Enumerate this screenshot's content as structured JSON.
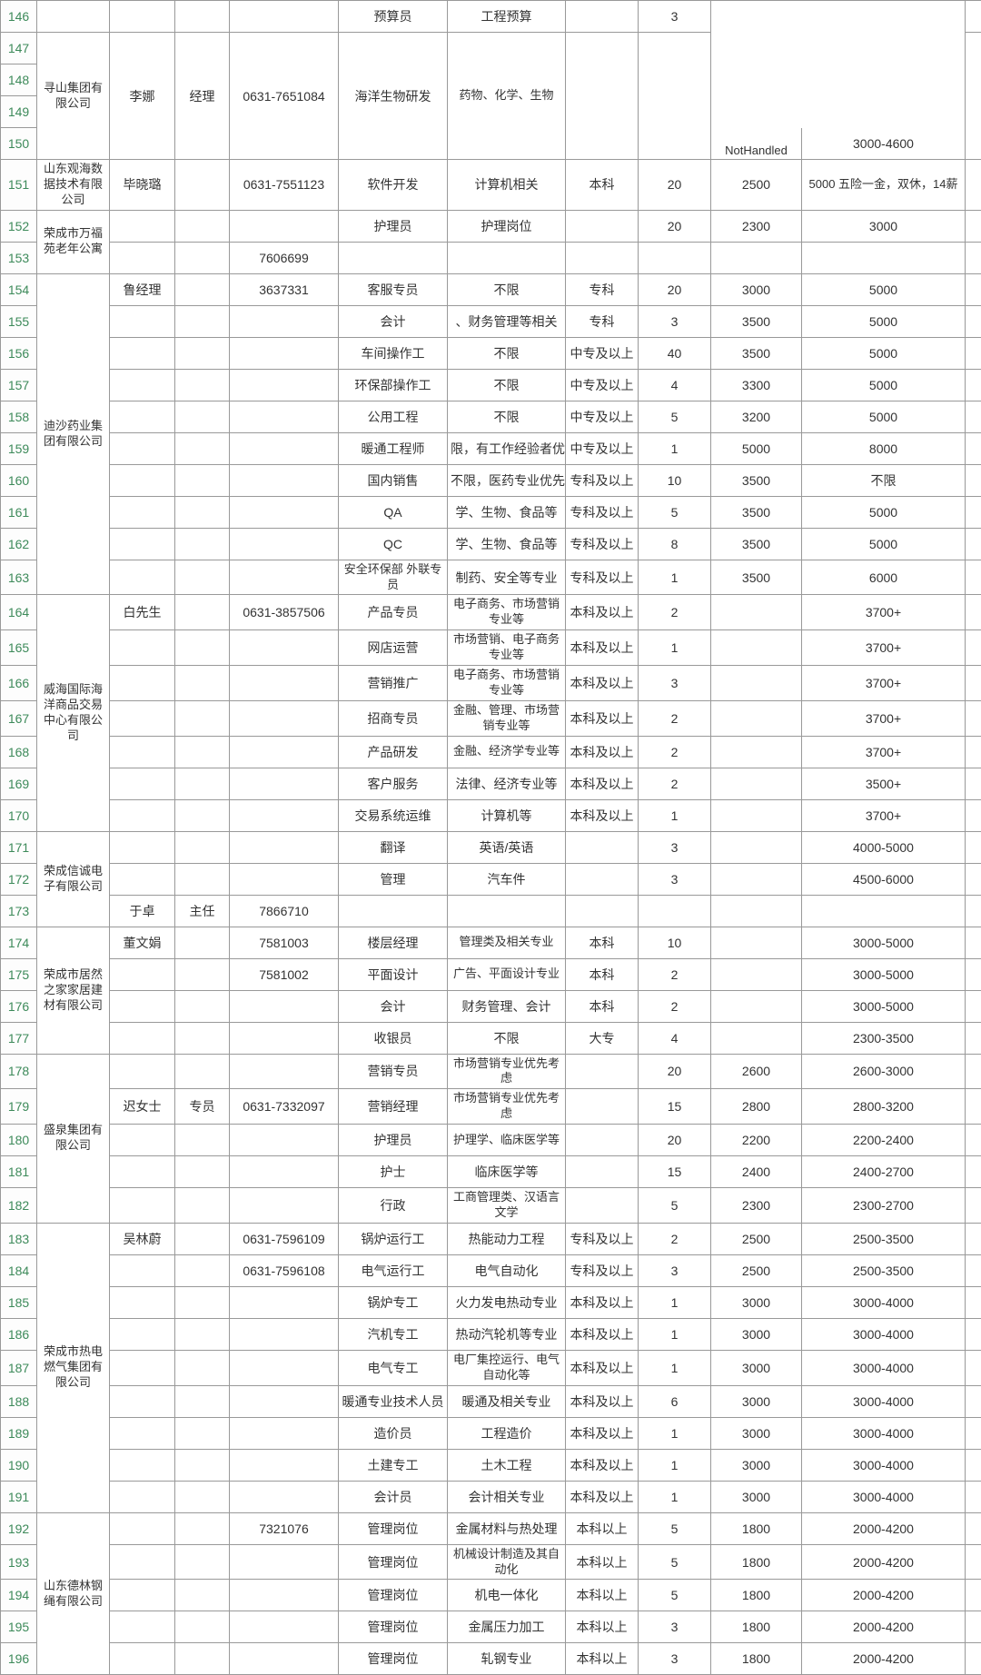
{
  "colors": {
    "border": "#999999",
    "rownum_text": "#3d8a5a",
    "bg": "#ffffff"
  },
  "rownums": [
    "146",
    "147",
    "148",
    "149",
    "150",
    "151",
    "152",
    "153",
    "154",
    "155",
    "156",
    "157",
    "158",
    "159",
    "160",
    "161",
    "162",
    "163",
    "164",
    "165",
    "166",
    "167",
    "168",
    "169",
    "170",
    "171",
    "172",
    "173",
    "174",
    "175",
    "176",
    "177",
    "178",
    "179",
    "180",
    "181",
    "182",
    "183",
    "184",
    "185",
    "186",
    "187",
    "188",
    "189",
    "190",
    "191",
    "192",
    "193",
    "194",
    "195",
    "196"
  ],
  "r146": {
    "pos": "预算员",
    "req": "工程预算",
    "count": "3"
  },
  "r147": {
    "comp": "寻山集团有限公司",
    "contact": "李娜",
    "title": "经理",
    "phone": "0631-7651084",
    "pos": "海洋生物研发",
    "req": "药物、化学、生物",
    "count_note": "NotHandled",
    "sal": "3000-4600"
  },
  "r151": {
    "comp": "山东观海数据技术有限公司",
    "contact": "毕晓璐",
    "phone": "0631-7551123",
    "pos": "软件开发",
    "req": "计算机相关",
    "edu": "本科",
    "count": "20",
    "base": "2500",
    "sal": "5000\n五险一金，双休，14薪"
  },
  "r152": {
    "comp": "荣成市万福苑老年公寓",
    "pos": "护理员",
    "req": "护理岗位",
    "count": "20",
    "base": "2300",
    "sal": "3000"
  },
  "r153": {
    "phone": "7606699"
  },
  "r154": {
    "comp": "迪沙药业集团有限公司",
    "contact": "鲁经理",
    "phone": "3637331",
    "pos": "客服专员",
    "req": "不限",
    "edu": "专科",
    "count": "20",
    "base": "3000",
    "sal": "5000"
  },
  "r155": {
    "pos": "会计",
    "req": "、财务管理等相关",
    "edu": "专科",
    "count": "3",
    "base": "3500",
    "sal": "5000"
  },
  "r156": {
    "pos": "车间操作工",
    "req": "不限",
    "edu": "中专及以上",
    "count": "40",
    "base": "3500",
    "sal": "5000"
  },
  "r157": {
    "pos": "环保部操作工",
    "req": "不限",
    "edu": "中专及以上",
    "count": "4",
    "base": "3300",
    "sal": "5000"
  },
  "r158": {
    "pos": "公用工程",
    "req": "不限",
    "edu": "中专及以上",
    "count": "5",
    "base": "3200",
    "sal": "5000"
  },
  "r159": {
    "pos": "暖通工程师",
    "req": "限，有工作经验者优",
    "edu": "中专及以上",
    "count": "1",
    "base": "5000",
    "sal": "8000"
  },
  "r160": {
    "pos": "国内销售",
    "req": "不限，医药专业优先",
    "edu": "专科及以上",
    "count": "10",
    "base": "3500",
    "sal": "不限"
  },
  "r161": {
    "pos": "QA",
    "req": "学、生物、食品等",
    "edu": "专科及以上",
    "count": "5",
    "base": "3500",
    "sal": "5000"
  },
  "r162": {
    "pos": "QC",
    "req": "学、生物、食品等",
    "edu": "专科及以上",
    "count": "8",
    "base": "3500",
    "sal": "5000"
  },
  "r163": {
    "pos": "安全环保部\n外联专员",
    "req": "制药、安全等专业",
    "edu": "专科及以上",
    "count": "1",
    "base": "3500",
    "sal": "6000"
  },
  "r164": {
    "comp": "威海国际海洋商品交易中心有限公司",
    "contact": "白先生",
    "phone": "0631-3857506",
    "pos": "产品专员",
    "req": "电子商务、市场营销专业等",
    "edu": "本科及以上",
    "count": "2",
    "sal": "3700+"
  },
  "r165": {
    "pos": "网店运营",
    "req": "市场营销、电子商务专业等",
    "edu": "本科及以上",
    "count": "1",
    "sal": "3700+"
  },
  "r166": {
    "pos": "营销推广",
    "req": "电子商务、市场营销专业等",
    "edu": "本科及以上",
    "count": "3",
    "sal": "3700+"
  },
  "r167": {
    "pos": "招商专员",
    "req": "金融、管理、市场营销专业等",
    "edu": "本科及以上",
    "count": "2",
    "sal": "3700+"
  },
  "r168": {
    "pos": "产品研发",
    "req": "金融、经济学专业等",
    "edu": "本科及以上",
    "count": "2",
    "sal": "3700+"
  },
  "r169": {
    "pos": "客户服务",
    "req": "法律、经济专业等",
    "edu": "本科及以上",
    "count": "2",
    "sal": "3500+"
  },
  "r170": {
    "pos": "交易系统运维",
    "req": "计算机等",
    "edu": "本科及以上",
    "count": "1",
    "sal": "3700+"
  },
  "r171": {
    "comp": "荣成信诚电子有限公司",
    "pos": "翻译",
    "req": "英语/英语",
    "count": "3",
    "sal": "4000-5000"
  },
  "r172": {
    "pos": "管理",
    "req": "汽车件",
    "count": "3",
    "sal": "4500-6000"
  },
  "r173": {
    "contact": "于卓",
    "title": "主任",
    "phone": "7866710"
  },
  "r174": {
    "comp": "荣成市居然之家家居建材有限公司",
    "contact": "董文娟",
    "phone": "7581003",
    "pos": "楼层经理",
    "req": "管理类及相关专业",
    "edu": "本科",
    "count": "10",
    "sal": "3000-5000"
  },
  "r175": {
    "phone": "7581002",
    "pos": "平面设计",
    "req": "广告、平面设计专业",
    "edu": "本科",
    "count": "2",
    "sal": "3000-5000"
  },
  "r176": {
    "pos": "会计",
    "req": "财务管理、会计",
    "edu": "本科",
    "count": "2",
    "sal": "3000-5000"
  },
  "r177": {
    "pos": "收银员",
    "req": "不限",
    "edu": "大专",
    "count": "4",
    "sal": "2300-3500"
  },
  "r178": {
    "comp": "盛泉集团有限公司",
    "pos": "营销专员",
    "req": "市场营销专业优先考虑",
    "count": "20",
    "base": "2600",
    "sal": "2600-3000"
  },
  "r179": {
    "contact": "迟女士",
    "title": "专员",
    "phone": "0631-7332097",
    "pos": "营销经理",
    "req": "市场营销专业优先考虑",
    "count": "15",
    "base": "2800",
    "sal": "2800-3200"
  },
  "r180": {
    "pos": "护理员",
    "req": "护理学、临床医学等",
    "count": "20",
    "base": "2200",
    "sal": "2200-2400"
  },
  "r181": {
    "pos": "护士",
    "req": "临床医学等",
    "count": "15",
    "base": "2400",
    "sal": "2400-2700"
  },
  "r182": {
    "pos": "行政",
    "req": "工商管理类、汉语言文学",
    "count": "5",
    "base": "2300",
    "sal": "2300-2700"
  },
  "r183": {
    "comp": "荣成市热电燃气集团有限公司",
    "contact": "吴林蔚",
    "phone": "0631-7596109",
    "pos": "锅炉运行工",
    "req": "热能动力工程",
    "edu": "专科及以上",
    "count": "2",
    "base": "2500",
    "sal": "2500-3500"
  },
  "r184": {
    "phone": "0631-7596108",
    "pos": "电气运行工",
    "req": "电气自动化",
    "edu": "专科及以上",
    "count": "3",
    "base": "2500",
    "sal": "2500-3500"
  },
  "r185": {
    "pos": "锅炉专工",
    "req": "火力发电热动专业",
    "edu": "本科及以上",
    "count": "1",
    "base": "3000",
    "sal": "3000-4000"
  },
  "r186": {
    "pos": "汽机专工",
    "req": "热动汽轮机等专业",
    "edu": "本科及以上",
    "count": "1",
    "base": "3000",
    "sal": "3000-4000"
  },
  "r187": {
    "pos": "电气专工",
    "req": "电厂集控运行、电气自动化等",
    "edu": "本科及以上",
    "count": "1",
    "base": "3000",
    "sal": "3000-4000"
  },
  "r188": {
    "pos": "暖通专业技术人员",
    "req": "暖通及相关专业",
    "edu": "本科及以上",
    "count": "6",
    "base": "3000",
    "sal": "3000-4000"
  },
  "r189": {
    "pos": "造价员",
    "req": "工程造价",
    "edu": "本科及以上",
    "count": "1",
    "base": "3000",
    "sal": "3000-4000"
  },
  "r190": {
    "pos": "土建专工",
    "req": "土木工程",
    "edu": "本科及以上",
    "count": "1",
    "base": "3000",
    "sal": "3000-4000"
  },
  "r191": {
    "pos": "会计员",
    "req": "会计相关专业",
    "edu": "本科及以上",
    "count": "1",
    "base": "3000",
    "sal": "3000-4000"
  },
  "r192": {
    "comp": "山东德林钢绳有限公司",
    "phone": "7321076",
    "pos": "管理岗位",
    "req": "金属材料与热处理",
    "edu": "本科以上",
    "count": "5",
    "base": "1800",
    "sal": "2000-4200"
  },
  "r193": {
    "pos": "管理岗位",
    "req": "机械设计制造及其自动化",
    "edu": "本科以上",
    "count": "5",
    "base": "1800",
    "sal": "2000-4200"
  },
  "r194": {
    "pos": "管理岗位",
    "req": "机电一体化",
    "edu": "本科以上",
    "count": "5",
    "base": "1800",
    "sal": "2000-4200"
  },
  "r195": {
    "pos": "管理岗位",
    "req": "金属压力加工",
    "edu": "本科以上",
    "count": "3",
    "base": "1800",
    "sal": "2000-4200"
  },
  "r196": {
    "pos": "管理岗位",
    "req": "轧钢专业",
    "edu": "本科以上",
    "count": "3",
    "base": "1800",
    "sal": "2000-4200"
  }
}
